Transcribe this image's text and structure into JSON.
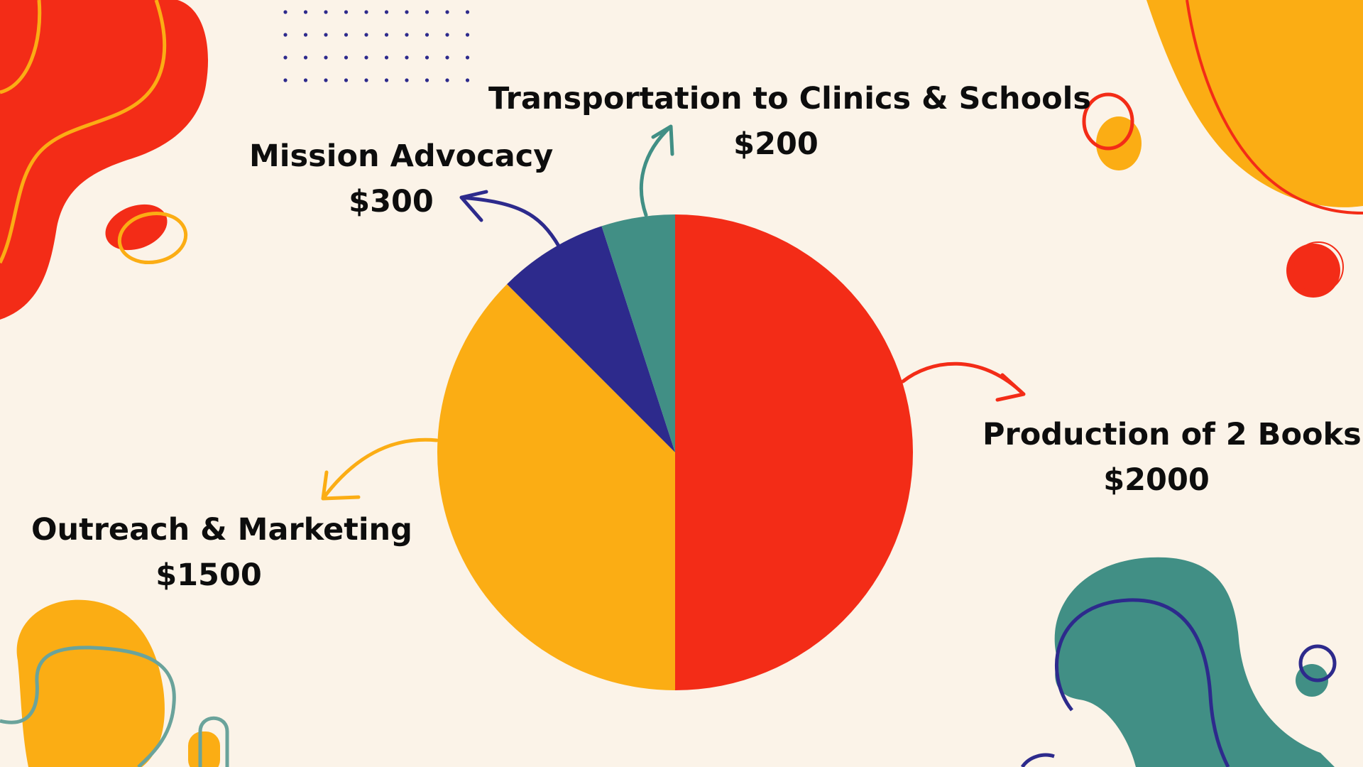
{
  "colors": {
    "background": "#fbf3e8",
    "red": "#f32c17",
    "orange": "#fbad14",
    "navy": "#2d2a8c",
    "teal": "#418f85"
  },
  "chart_data": {
    "type": "pie",
    "title": "",
    "start_angle_deg": 0,
    "direction": "clockwise",
    "slices": [
      {
        "label": "Production of 2 Books",
        "value_text": "$2000",
        "value": 2000,
        "color": "#f32c17",
        "arrow_color": "#f32c17"
      },
      {
        "label": "Outreach & Marketing",
        "value_text": "$1500",
        "value": 1500,
        "color": "#fbad14",
        "arrow_color": "#fbad14"
      },
      {
        "label": "Mission Advocacy",
        "value_text": "$300",
        "value": 300,
        "color": "#2d2a8c",
        "arrow_color": "#2d2a8c"
      },
      {
        "label": "Transportation to Clinics & Schools",
        "value_text": "$200",
        "value": 200,
        "color": "#418f85",
        "arrow_color": "#418f85"
      }
    ]
  }
}
